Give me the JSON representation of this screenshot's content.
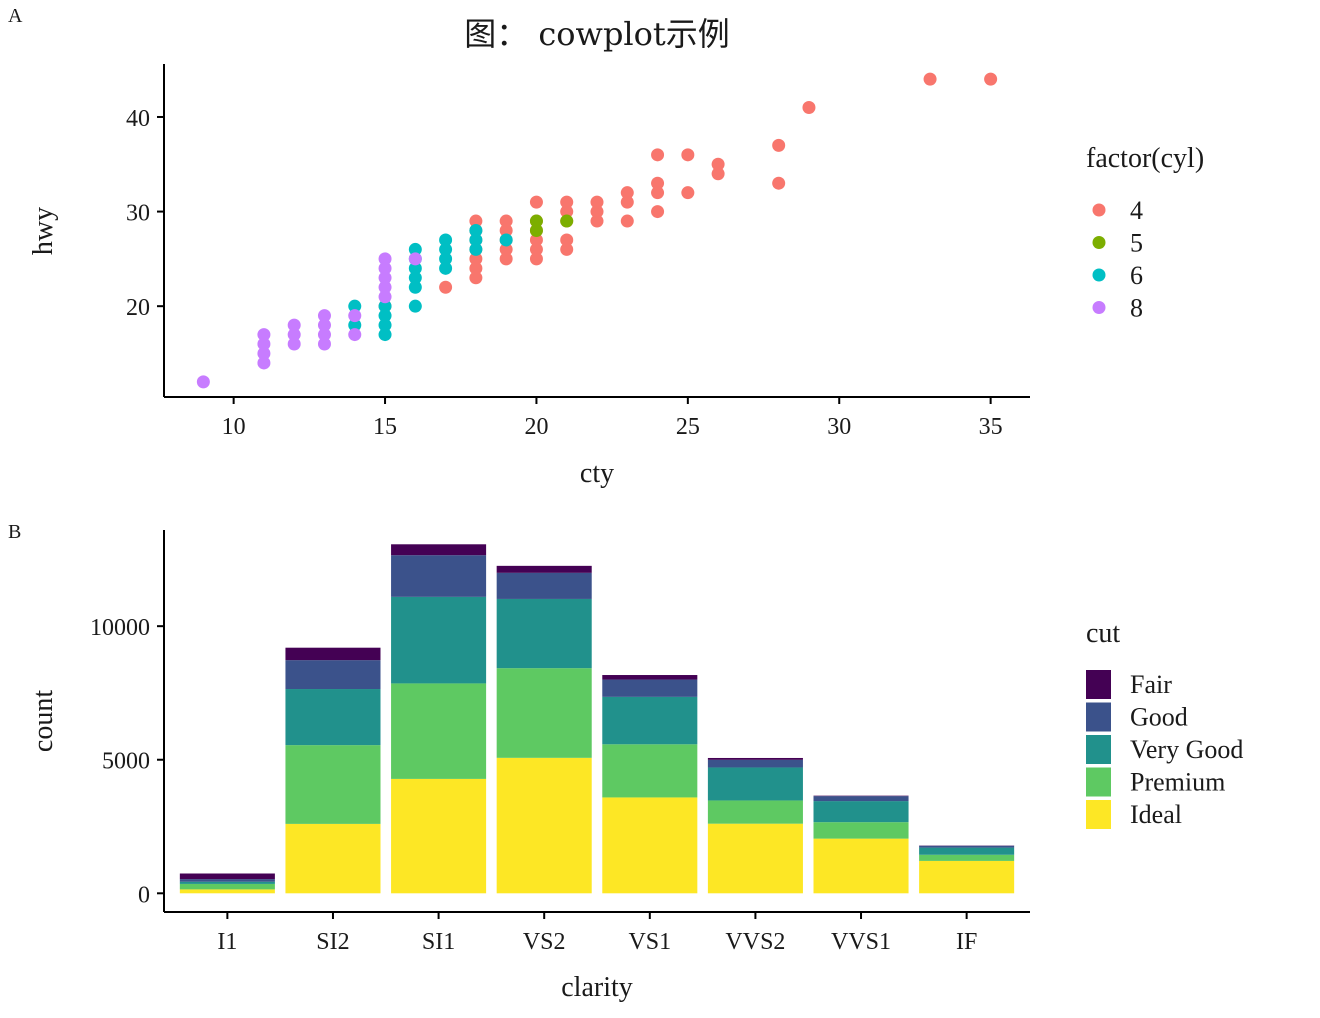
{
  "chart_data": [
    {
      "panel": "A",
      "type": "scatter",
      "title": "图： cowplot示例",
      "xlabel": "cty",
      "ylabel": "hwy",
      "xlim": [
        7.7,
        36.3
      ],
      "ylim": [
        10.4,
        45.6
      ],
      "x_ticks": [
        10,
        15,
        20,
        25,
        30,
        35
      ],
      "y_ticks": [
        20,
        30,
        40
      ],
      "legend": {
        "title": "factor(cyl)",
        "placement": "right"
      },
      "series": [
        {
          "name": "4",
          "color": "#F8766D",
          "points": [
            [
              15,
              20
            ],
            [
              17,
              22
            ],
            [
              18,
              23
            ],
            [
              18,
              24
            ],
            [
              18,
              25
            ],
            [
              18,
              26
            ],
            [
              18,
              27
            ],
            [
              18,
              28
            ],
            [
              18,
              29
            ],
            [
              19,
              25
            ],
            [
              19,
              26
            ],
            [
              19,
              27
            ],
            [
              19,
              28
            ],
            [
              19,
              29
            ],
            [
              20,
              25
            ],
            [
              20,
              26
            ],
            [
              20,
              27
            ],
            [
              20,
              28
            ],
            [
              20,
              29
            ],
            [
              20,
              31
            ],
            [
              21,
              26
            ],
            [
              21,
              27
            ],
            [
              21,
              29
            ],
            [
              21,
              30
            ],
            [
              21,
              31
            ],
            [
              22,
              29
            ],
            [
              22,
              30
            ],
            [
              22,
              31
            ],
            [
              23,
              29
            ],
            [
              23,
              31
            ],
            [
              23,
              32
            ],
            [
              24,
              30
            ],
            [
              24,
              32
            ],
            [
              24,
              33
            ],
            [
              24,
              36
            ],
            [
              25,
              32
            ],
            [
              25,
              36
            ],
            [
              26,
              34
            ],
            [
              26,
              35
            ],
            [
              28,
              33
            ],
            [
              28,
              37
            ],
            [
              29,
              41
            ],
            [
              33,
              44
            ],
            [
              35,
              44
            ]
          ]
        },
        {
          "name": "5",
          "color": "#7CAE00",
          "points": [
            [
              20,
              28
            ],
            [
              20,
              29
            ],
            [
              21,
              29
            ]
          ]
        },
        {
          "name": "6",
          "color": "#00BFC4",
          "points": [
            [
              14,
              18
            ],
            [
              14,
              20
            ],
            [
              15,
              17
            ],
            [
              15,
              18
            ],
            [
              15,
              19
            ],
            [
              15,
              20
            ],
            [
              16,
              20
            ],
            [
              16,
              22
            ],
            [
              16,
              23
            ],
            [
              16,
              24
            ],
            [
              16,
              25
            ],
            [
              16,
              26
            ],
            [
              17,
              24
            ],
            [
              17,
              25
            ],
            [
              17,
              26
            ],
            [
              17,
              27
            ],
            [
              18,
              26
            ],
            [
              18,
              27
            ],
            [
              18,
              28
            ],
            [
              19,
              27
            ]
          ]
        },
        {
          "name": "8",
          "color": "#C77CFF",
          "points": [
            [
              9,
              12
            ],
            [
              11,
              14
            ],
            [
              11,
              15
            ],
            [
              11,
              16
            ],
            [
              11,
              17
            ],
            [
              12,
              16
            ],
            [
              12,
              17
            ],
            [
              12,
              18
            ],
            [
              13,
              16
            ],
            [
              13,
              17
            ],
            [
              13,
              18
            ],
            [
              13,
              19
            ],
            [
              14,
              17
            ],
            [
              14,
              19
            ],
            [
              15,
              21
            ],
            [
              15,
              22
            ],
            [
              15,
              23
            ],
            [
              15,
              24
            ],
            [
              15,
              25
            ],
            [
              16,
              25
            ]
          ]
        }
      ]
    },
    {
      "panel": "B",
      "type": "bar",
      "stacked": true,
      "xlabel": "clarity",
      "ylabel": "count",
      "ylim": [
        -700,
        13600
      ],
      "y_ticks": [
        0,
        5000,
        10000
      ],
      "categories": [
        "I1",
        "SI2",
        "SI1",
        "VS2",
        "VS1",
        "VVS2",
        "VVS1",
        "IF"
      ],
      "legend": {
        "title": "cut",
        "placement": "right"
      },
      "series": [
        {
          "name": "Ideal",
          "color": "#FDE725",
          "values": [
            146,
            2598,
            4282,
            5071,
            3589,
            2606,
            2047,
            1212
          ]
        },
        {
          "name": "Premium",
          "color": "#5EC962",
          "values": [
            205,
            2949,
            3575,
            3357,
            1989,
            870,
            616,
            230
          ]
        },
        {
          "name": "Very Good",
          "color": "#21918C",
          "values": [
            84,
            2100,
            3240,
            2591,
            1775,
            1235,
            789,
            268
          ]
        },
        {
          "name": "Good",
          "color": "#3B528B",
          "values": [
            96,
            1081,
            1560,
            978,
            648,
            286,
            186,
            71
          ]
        },
        {
          "name": "Fair",
          "color": "#440154",
          "values": [
            210,
            466,
            408,
            261,
            170,
            69,
            17,
            9
          ]
        }
      ],
      "legend_order": [
        "Fair",
        "Good",
        "Very Good",
        "Premium",
        "Ideal"
      ]
    }
  ]
}
